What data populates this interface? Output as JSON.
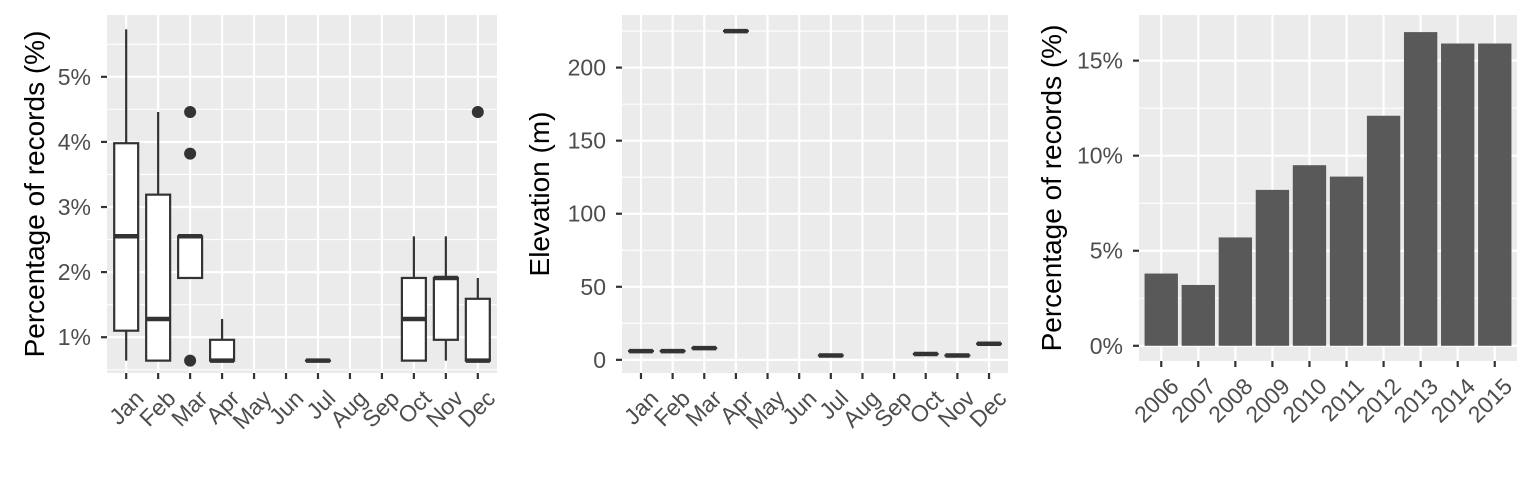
{
  "chart_data": [
    {
      "type": "box",
      "title": "",
      "xlabel": "",
      "ylabel": "Percentage of records (%)",
      "categories": [
        "Jan",
        "Feb",
        "Mar",
        "Apr",
        "May",
        "Jun",
        "Jul",
        "Aug",
        "Sep",
        "Oct",
        "Nov",
        "Dec"
      ],
      "ylim": [
        0.45,
        5.95
      ],
      "yticks": [
        1,
        2,
        3,
        4,
        5
      ],
      "ytick_labels": [
        "1%",
        "2%",
        "3%",
        "4%",
        "5%"
      ],
      "boxes": [
        {
          "category": "Jan",
          "lower_whisker": 0.64,
          "q1": 1.1,
          "median": 2.55,
          "q3": 3.98,
          "upper_whisker": 5.73,
          "outliers": []
        },
        {
          "category": "Feb",
          "lower_whisker": 0.64,
          "q1": 0.64,
          "median": 1.28,
          "q3": 3.19,
          "upper_whisker": 4.46,
          "outliers": []
        },
        {
          "category": "Mar",
          "lower_whisker": 1.91,
          "q1": 1.91,
          "median": 2.55,
          "q3": 2.55,
          "upper_whisker": 2.55,
          "outliers": [
            0.64,
            3.82,
            4.46
          ]
        },
        {
          "category": "Apr",
          "lower_whisker": 0.64,
          "q1": 0.64,
          "median": 0.64,
          "q3": 0.96,
          "upper_whisker": 1.28,
          "outliers": []
        },
        {
          "category": "Jul",
          "lower_whisker": 0.64,
          "q1": 0.64,
          "median": 0.64,
          "q3": 0.64,
          "upper_whisker": 0.64,
          "outliers": []
        },
        {
          "category": "Oct",
          "lower_whisker": 0.64,
          "q1": 0.64,
          "median": 1.28,
          "q3": 1.91,
          "upper_whisker": 2.55,
          "outliers": []
        },
        {
          "category": "Nov",
          "lower_whisker": 0.64,
          "q1": 0.96,
          "median": 1.91,
          "q3": 1.91,
          "upper_whisker": 2.55,
          "outliers": []
        },
        {
          "category": "Dec",
          "lower_whisker": 0.64,
          "q1": 0.64,
          "median": 0.64,
          "q3": 1.59,
          "upper_whisker": 1.91,
          "outliers": [
            4.46
          ]
        }
      ],
      "grid": true
    },
    {
      "type": "box",
      "title": "",
      "xlabel": "",
      "ylabel": "Elevation (m)",
      "categories": [
        "Jan",
        "Feb",
        "Mar",
        "Apr",
        "May",
        "Jun",
        "Jul",
        "Aug",
        "Sep",
        "Oct",
        "Nov",
        "Dec"
      ],
      "ylim": [
        -9,
        236
      ],
      "yticks": [
        0,
        50,
        100,
        150,
        200
      ],
      "ytick_labels": [
        "0",
        "50",
        "100",
        "150",
        "200"
      ],
      "boxes": [
        {
          "category": "Jan",
          "lower_whisker": 6,
          "q1": 6,
          "median": 6,
          "q3": 6,
          "upper_whisker": 6,
          "outliers": []
        },
        {
          "category": "Feb",
          "lower_whisker": 6,
          "q1": 6,
          "median": 6,
          "q3": 6,
          "upper_whisker": 6,
          "outliers": []
        },
        {
          "category": "Mar",
          "lower_whisker": 8,
          "q1": 8,
          "median": 8,
          "q3": 8,
          "upper_whisker": 8,
          "outliers": []
        },
        {
          "category": "Apr",
          "lower_whisker": 225,
          "q1": 225,
          "median": 225,
          "q3": 225,
          "upper_whisker": 225,
          "outliers": []
        },
        {
          "category": "Jul",
          "lower_whisker": 3,
          "q1": 3,
          "median": 3,
          "q3": 3,
          "upper_whisker": 3,
          "outliers": []
        },
        {
          "category": "Oct",
          "lower_whisker": 4,
          "q1": 4,
          "median": 4,
          "q3": 4,
          "upper_whisker": 4,
          "outliers": []
        },
        {
          "category": "Nov",
          "lower_whisker": 3,
          "q1": 3,
          "median": 3,
          "q3": 3,
          "upper_whisker": 3,
          "outliers": []
        },
        {
          "category": "Dec",
          "lower_whisker": 11,
          "q1": 11,
          "median": 11,
          "q3": 11,
          "upper_whisker": 11,
          "outliers": []
        }
      ],
      "grid": true
    },
    {
      "type": "bar",
      "title": "",
      "xlabel": "",
      "ylabel": "Percentage of records (%)",
      "categories": [
        "2006",
        "2007",
        "2008",
        "2009",
        "2010",
        "2011",
        "2012",
        "2013",
        "2014",
        "2015"
      ],
      "values": [
        3.8,
        3.2,
        5.7,
        8.2,
        9.5,
        8.9,
        12.1,
        16.5,
        15.9,
        15.9
      ],
      "ylim": [
        -0.8,
        17.4
      ],
      "yticks": [
        0,
        5,
        10,
        15
      ],
      "ytick_labels": [
        "0%",
        "5%",
        "10%",
        "15%"
      ],
      "bar_color": "#595959",
      "grid": true
    }
  ]
}
